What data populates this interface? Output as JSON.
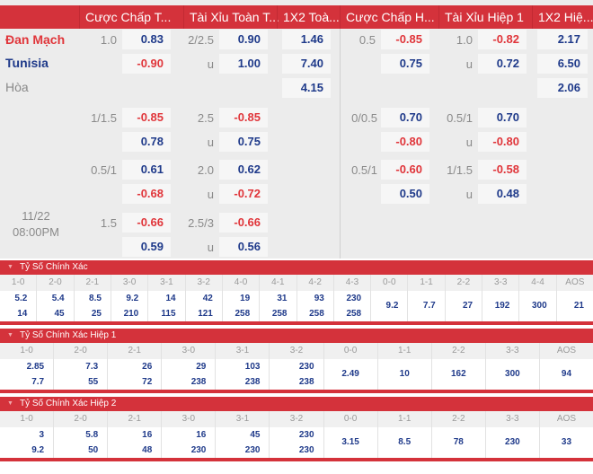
{
  "header": {
    "columns": [
      "Cược Chấp T...",
      "Tài Xỉu Toàn T...",
      "1X2 Toà...",
      "Cược Chấp H...",
      "Tài Xỉu Hiệp 1",
      "1X2 Hiệ..."
    ]
  },
  "teams": {
    "home": "Đan Mạch",
    "away": "Tunisia",
    "draw": "Hòa"
  },
  "match": {
    "date": "11/22",
    "time": "08:00PM"
  },
  "odds_rows": [
    {
      "ft_hdp_line": "1.0",
      "ft_hdp_home": "0.83",
      "ft_hdp_away": "-0.90",
      "ft_ou_line": "2/2.5",
      "ft_ou_over": "0.90",
      "ft_ou_u": "u",
      "ft_ou_under": "1.00",
      "ft_1x2_home": "1.46",
      "ft_1x2_away": "7.40",
      "ft_1x2_draw": "4.15",
      "h1_hdp_line": "0.5",
      "h1_hdp_home": "-0.85",
      "h1_hdp_away": "0.75",
      "h1_ou_line": "1.0",
      "h1_ou_over": "-0.82",
      "h1_ou_u": "u",
      "h1_ou_under": "0.72",
      "h1_1x2_home": "2.17",
      "h1_1x2_away": "6.50",
      "h1_1x2_draw": "2.06"
    },
    {
      "ft_hdp_line": "1/1.5",
      "ft_hdp_home": "-0.85",
      "ft_hdp_away": "0.78",
      "ft_ou_line": "2.5",
      "ft_ou_over": "-0.85",
      "ft_ou_u": "u",
      "ft_ou_under": "0.75",
      "h1_hdp_line": "0/0.5",
      "h1_hdp_home": "0.70",
      "h1_hdp_away": "-0.80",
      "h1_ou_line": "0.5/1",
      "h1_ou_over": "0.70",
      "h1_ou_u": "u",
      "h1_ou_under": "-0.80"
    },
    {
      "ft_hdp_line": "0.5/1",
      "ft_hdp_home": "0.61",
      "ft_hdp_away": "-0.68",
      "ft_ou_line": "2.0",
      "ft_ou_over": "0.62",
      "ft_ou_u": "u",
      "ft_ou_under": "-0.72",
      "h1_hdp_line": "0.5/1",
      "h1_hdp_home": "-0.60",
      "h1_hdp_away": "0.50",
      "h1_ou_line": "1/1.5",
      "h1_ou_over": "-0.58",
      "h1_ou_u": "u",
      "h1_ou_under": "0.48"
    },
    {
      "ft_hdp_line": "1.5",
      "ft_hdp_home": "-0.66",
      "ft_hdp_away": "0.59",
      "ft_ou_line": "2.5/3",
      "ft_ou_over": "-0.66",
      "ft_ou_u": "u",
      "ft_ou_under": "0.56"
    }
  ],
  "correct_score": {
    "title": "Tỷ Số Chính Xác",
    "columns": [
      {
        "label": "1-0",
        "home": "5.2",
        "away": "14"
      },
      {
        "label": "2-0",
        "home": "5.4",
        "away": "45"
      },
      {
        "label": "2-1",
        "home": "8.5",
        "away": "25"
      },
      {
        "label": "3-0",
        "home": "9.2",
        "away": "210"
      },
      {
        "label": "3-1",
        "home": "14",
        "away": "115"
      },
      {
        "label": "3-2",
        "home": "42",
        "away": "121"
      },
      {
        "label": "4-0",
        "home": "19",
        "away": "258"
      },
      {
        "label": "4-1",
        "home": "31",
        "away": "258"
      },
      {
        "label": "4-2",
        "home": "93",
        "away": "258"
      },
      {
        "label": "4-3",
        "home": "230",
        "away": "258"
      },
      {
        "label": "0-0",
        "value": "9.2"
      },
      {
        "label": "1-1",
        "value": "7.7"
      },
      {
        "label": "2-2",
        "value": "27"
      },
      {
        "label": "3-3",
        "value": "192"
      },
      {
        "label": "4-4",
        "value": "300"
      },
      {
        "label": "AOS",
        "value": "21"
      }
    ]
  },
  "correct_score_h1": {
    "title": "Tỷ Số Chính Xác Hiệp 1",
    "columns": [
      {
        "label": "1-0",
        "home": "2.85",
        "away": "7.7"
      },
      {
        "label": "2-0",
        "home": "7.3",
        "away": "55"
      },
      {
        "label": "2-1",
        "home": "26",
        "away": "72"
      },
      {
        "label": "3-0",
        "home": "29",
        "away": "238"
      },
      {
        "label": "3-1",
        "home": "103",
        "away": "238"
      },
      {
        "label": "3-2",
        "home": "230",
        "away": "238"
      },
      {
        "label": "0-0",
        "value": "2.49"
      },
      {
        "label": "1-1",
        "value": "10"
      },
      {
        "label": "2-2",
        "value": "162"
      },
      {
        "label": "3-3",
        "value": "300"
      },
      {
        "label": "AOS",
        "value": "94"
      }
    ]
  },
  "correct_score_h2": {
    "title": "Tỷ Số Chính Xác Hiệp 2",
    "columns": [
      {
        "label": "1-0",
        "home": "3",
        "away": "9.2"
      },
      {
        "label": "2-0",
        "home": "5.8",
        "away": "50"
      },
      {
        "label": "2-1",
        "home": "16",
        "away": "48"
      },
      {
        "label": "3-0",
        "home": "16",
        "away": "230"
      },
      {
        "label": "3-1",
        "home": "45",
        "away": "230"
      },
      {
        "label": "3-2",
        "home": "230",
        "away": "230"
      },
      {
        "label": "0-0",
        "value": "3.15"
      },
      {
        "label": "1-1",
        "value": "8.5"
      },
      {
        "label": "2-2",
        "value": "78"
      },
      {
        "label": "3-3",
        "value": "230"
      },
      {
        "label": "AOS",
        "value": "33"
      }
    ]
  },
  "colors": {
    "accent": "#d4323b",
    "positive": "#1f3a8a",
    "negative": "#e0353a"
  }
}
